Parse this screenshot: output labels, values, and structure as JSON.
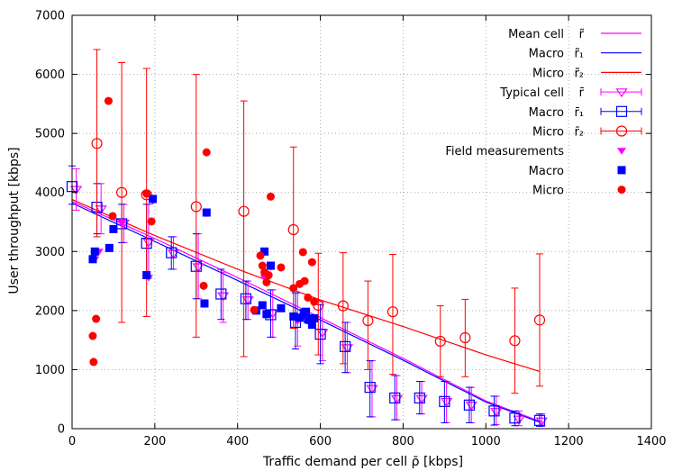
{
  "chart_data": {
    "type": "scatter",
    "xlabel": "Traffic demand per cell  ρ̄ [kbps]",
    "ylabel": "User throughput [kbps]",
    "xlim": [
      0,
      1400
    ],
    "ylim": [
      0,
      7000
    ],
    "x_ticks": [
      0,
      200,
      400,
      600,
      800,
      1000,
      1200,
      1400
    ],
    "y_ticks": [
      0,
      1000,
      2000,
      3000,
      4000,
      5000,
      6000,
      7000
    ],
    "grid": true,
    "legend_position": "top-right",
    "colors": {
      "magenta": "#ff00ff",
      "blue": "#0000ff",
      "red": "#ff0000",
      "purple": "#8a2be2"
    },
    "legend": [
      {
        "label": "Mean cell",
        "symbol": "r̃",
        "style": "line",
        "color": "#ff00ff"
      },
      {
        "label": "Macro",
        "symbol": "r̃₁",
        "style": "line",
        "color": "#0000ff"
      },
      {
        "label": "Micro",
        "symbol": "r̃₂",
        "style": "line",
        "color": "#ff0000"
      },
      {
        "label": "Typical cell",
        "symbol": "r̄",
        "style": "errorbar-triangle",
        "color": "#ff00ff"
      },
      {
        "label": "Macro",
        "symbol": "r̄₁",
        "style": "errorbar-square",
        "color": "#0000ff"
      },
      {
        "label": "Micro",
        "symbol": "r̄₂",
        "style": "errorbar-circle",
        "color": "#ff0000"
      },
      {
        "label": "Field measurements",
        "symbol": "",
        "style": "filled-triangle",
        "color": "#ff00ff"
      },
      {
        "label": "Macro",
        "symbol": "",
        "style": "filled-square",
        "color": "#0000ff"
      },
      {
        "label": "Micro",
        "symbol": "",
        "style": "filled-circle",
        "color": "#ff0000"
      }
    ],
    "series": [
      {
        "style": "line",
        "color": "#ff00ff",
        "x": [
          0,
          200,
          400,
          600,
          800,
          1000,
          1140
        ],
        "y": [
          3850,
          3220,
          2560,
          1880,
          1190,
          470,
          100
        ]
      },
      {
        "style": "line",
        "color": "#0000ff",
        "x": [
          0,
          200,
          400,
          600,
          800,
          1000,
          1130
        ],
        "y": [
          3820,
          3170,
          2510,
          1840,
          1160,
          450,
          110
        ]
      },
      {
        "style": "line",
        "color": "#ff0000",
        "x": [
          0,
          200,
          400,
          600,
          800,
          1000,
          1130
        ],
        "y": [
          3880,
          3270,
          2700,
          2180,
          1730,
          1250,
          970
        ]
      },
      {
        "style": "errorbar-triangle",
        "color": "#ff00ff",
        "x": [
          10,
          70,
          125,
          185,
          245,
          305,
          365,
          425,
          485,
          545,
          605,
          665,
          725,
          785,
          845,
          905,
          965,
          1025,
          1080,
          1135
        ],
        "y": [
          4050,
          3720,
          3480,
          3160,
          2970,
          2740,
          2250,
          2180,
          1960,
          1850,
          1630,
          1370,
          680,
          510,
          510,
          460,
          400,
          290,
          160,
          130
        ],
        "lo": [
          3700,
          3300,
          3150,
          2550,
          2700,
          2200,
          1800,
          1850,
          1550,
          1400,
          1150,
          950,
          200,
          150,
          250,
          100,
          100,
          70,
          50,
          40
        ],
        "hi": [
          4400,
          4150,
          3800,
          3800,
          3250,
          3300,
          2650,
          2500,
          2350,
          2300,
          2150,
          1800,
          1150,
          900,
          800,
          800,
          700,
          550,
          300,
          250
        ]
      },
      {
        "style": "errorbar-square",
        "color": "#0000ff",
        "x": [
          0,
          60,
          120,
          180,
          240,
          300,
          360,
          420,
          480,
          540,
          600,
          660,
          720,
          780,
          840,
          900,
          960,
          1020,
          1070,
          1130
        ],
        "y": [
          4100,
          3750,
          3470,
          3140,
          2980,
          2750,
          2280,
          2200,
          1930,
          1800,
          1600,
          1390,
          700,
          520,
          520,
          460,
          400,
          300,
          180,
          140
        ],
        "lo": [
          3800,
          3300,
          3150,
          2550,
          2700,
          2200,
          1850,
          1850,
          1550,
          1350,
          1100,
          950,
          200,
          150,
          250,
          100,
          100,
          60,
          50,
          40
        ],
        "hi": [
          4450,
          4150,
          3800,
          3800,
          3250,
          3300,
          2700,
          2500,
          2350,
          2300,
          2100,
          1800,
          1150,
          900,
          800,
          800,
          700,
          550,
          300,
          250
        ]
      },
      {
        "style": "errorbar-circle",
        "color": "#ff0000",
        "x": [
          60,
          120,
          180,
          300,
          415,
          535,
          595,
          655,
          715,
          775,
          890,
          950,
          1070,
          1130
        ],
        "y": [
          4830,
          4000,
          3960,
          3760,
          3680,
          3370,
          2090,
          2080,
          1830,
          1980,
          1480,
          1540,
          1490,
          1840
        ],
        "lo": [
          3250,
          1800,
          1900,
          1550,
          1220,
          1700,
          1250,
          1100,
          1000,
          920,
          880,
          880,
          600,
          720
        ],
        "hi": [
          6420,
          6200,
          6100,
          6000,
          5550,
          4770,
          2970,
          2980,
          2500,
          2950,
          2080,
          2190,
          2380,
          2960
        ]
      },
      {
        "style": "filled-triangle",
        "color": "#ff00ff",
        "x": [
          55,
          65,
          120,
          185,
          195,
          325,
          465,
          480,
          545,
          555
        ],
        "y": [
          2870,
          3000,
          3480,
          2560,
          3860,
          3650,
          2560,
          2740,
          1880,
          1870
        ]
      },
      {
        "style": "filled-square",
        "color": "#0000ff",
        "x": [
          50,
          55,
          90,
          100,
          180,
          195,
          320,
          325,
          445,
          460,
          465,
          470,
          480,
          505,
          535,
          550,
          560,
          565,
          570,
          575,
          580,
          585
        ],
        "y": [
          2870,
          3000,
          3060,
          3380,
          2600,
          3890,
          2120,
          3660,
          2000,
          2090,
          3000,
          1940,
          2760,
          2040,
          1900,
          1880,
          1960,
          1980,
          1850,
          1840,
          1760,
          1870
        ],
        "y_note": ""
      },
      {
        "style": "filled-circle",
        "color": "#ff0000",
        "x": [
          50,
          52,
          58,
          88,
          98,
          180,
          192,
          318,
          325,
          440,
          455,
          460,
          465,
          470,
          475,
          480,
          505,
          535,
          550,
          558,
          562,
          570,
          580,
          585
        ],
        "y": [
          1570,
          1130,
          1860,
          5550,
          3600,
          3980,
          3510,
          2420,
          4680,
          2010,
          2930,
          2760,
          2650,
          2480,
          2600,
          3930,
          2730,
          2380,
          2450,
          2990,
          2500,
          2220,
          2820,
          2150
        ]
      }
    ]
  }
}
